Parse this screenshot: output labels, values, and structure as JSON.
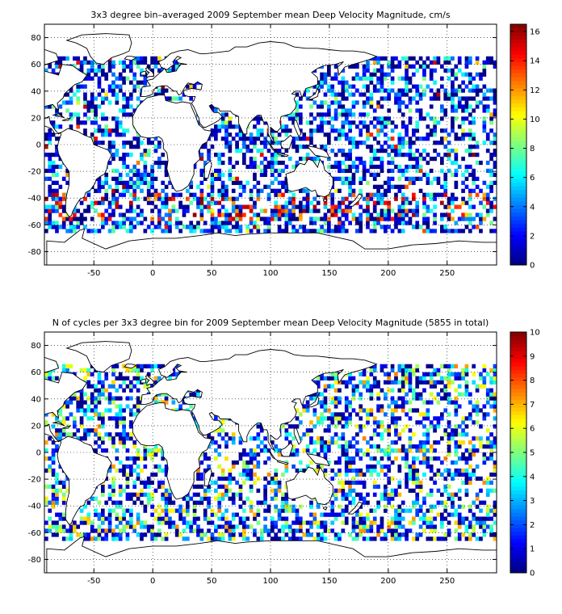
{
  "panels": [
    {
      "id": "velocity",
      "title": "3x3 degree bin–averaged 2009 September mean Deep Velocity Magnitude, cm/s",
      "colorbar": {
        "min": 0,
        "max": 16.5,
        "ticks": [
          0,
          2,
          4,
          6,
          8,
          10,
          12,
          14,
          16
        ]
      }
    },
    {
      "id": "cycles",
      "title": "N of cycles per 3x3 degree bin for 2009 September mean Deep Velocity Magnitude (5855 in total)",
      "colorbar": {
        "min": 0,
        "max": 10,
        "ticks": [
          0,
          1,
          2,
          3,
          4,
          5,
          6,
          7,
          8,
          9,
          10
        ]
      }
    }
  ],
  "map": {
    "x_range": [
      -92,
      292
    ],
    "y_range": [
      -90,
      90
    ],
    "x_ticks": [
      -50,
      0,
      50,
      100,
      150,
      200,
      250
    ],
    "y_ticks": [
      -80,
      -60,
      -40,
      -20,
      0,
      20,
      40,
      60,
      80
    ],
    "bin_size_deg": 3,
    "grid": true,
    "colormap": "jet"
  }
}
